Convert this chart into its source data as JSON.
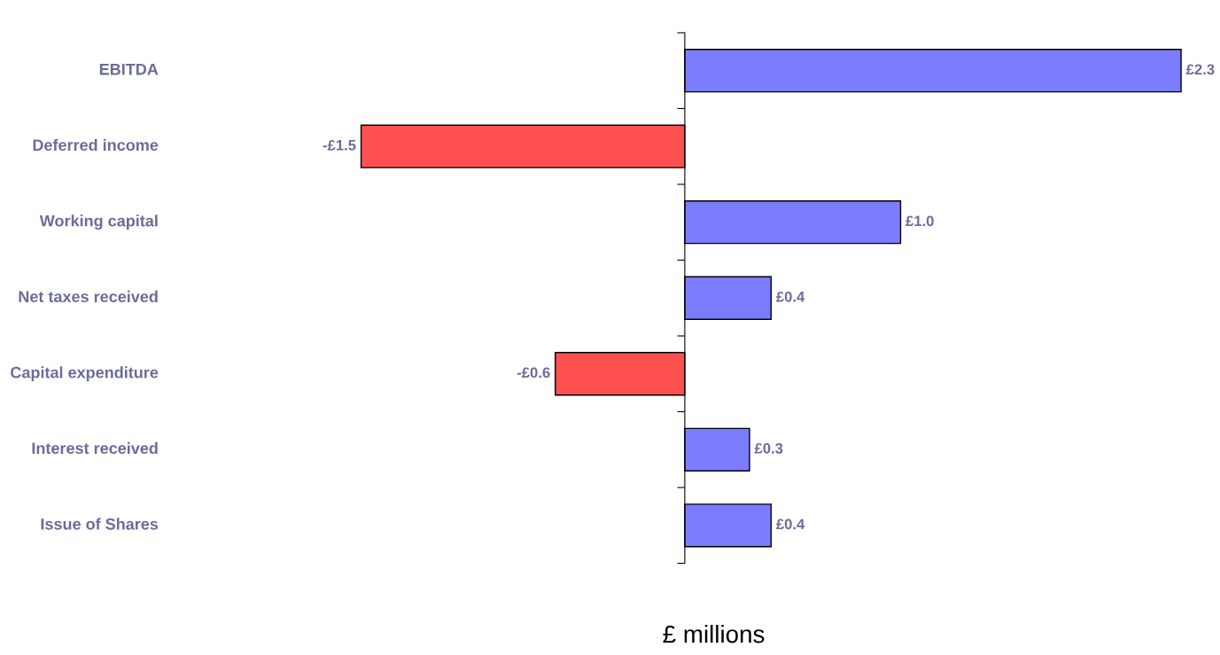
{
  "chart_data": {
    "type": "bar",
    "orientation": "horizontal",
    "xlabel": "£ millions",
    "categories": [
      "EBITDA",
      "Deferred income",
      "Working capital",
      "Net taxes received",
      "Capital expenditure",
      "Interest received",
      "Issue of Shares"
    ],
    "values": [
      2.3,
      -1.5,
      1.0,
      0.4,
      -0.6,
      0.3,
      0.4
    ],
    "value_labels": [
      "£2.3",
      "-£1.5",
      "£1.0",
      "£0.4",
      "-£0.6",
      "£0.3",
      "£0.4"
    ],
    "colors": [
      "#7c7cff",
      "#ff5050",
      "#7c7cff",
      "#7c7cff",
      "#ff5050",
      "#7c7cff",
      "#7c7cff"
    ],
    "grid": false,
    "legend": false
  }
}
